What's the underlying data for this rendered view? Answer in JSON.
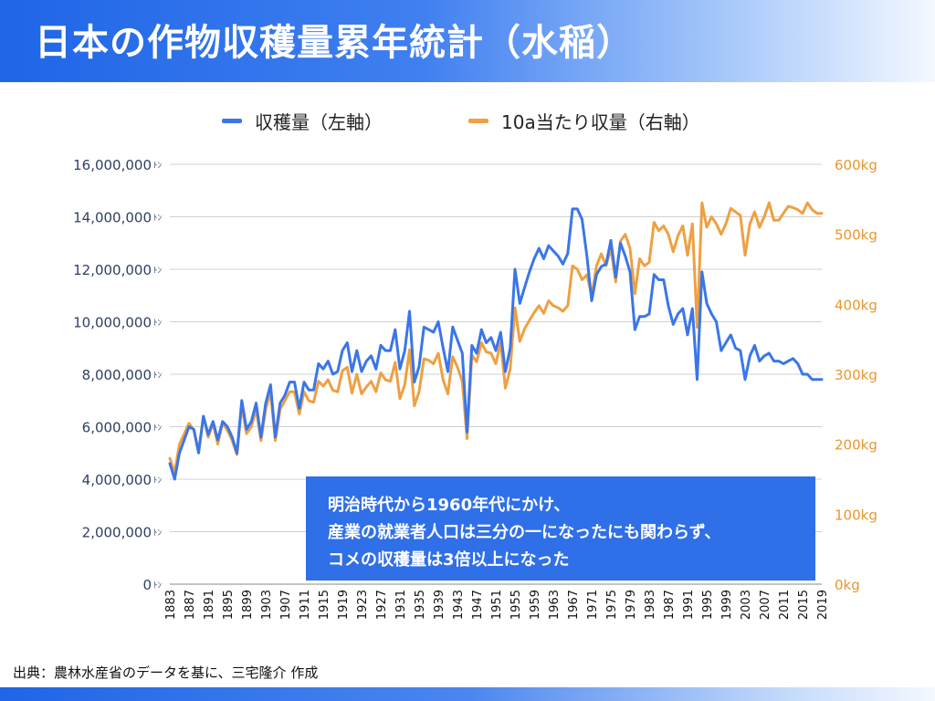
{
  "header": {
    "title": "日本の作物収穫量累年統計（水稲）"
  },
  "callout": {
    "lines": [
      "明治時代から1960年代にかけ、",
      "産業の就業者人口は三分の一になったにも関わらず、",
      "コメの収穫量は3倍以上になった"
    ]
  },
  "source": "出典：農林水産省のデータを基に、三宅隆介 作成",
  "colors": {
    "blue_series": "#3a76e8",
    "orange_series": "#eea042",
    "right_axis_text": "#e8972f",
    "left_axis_text": "#2f3f63",
    "grid": "#d0d0d0"
  },
  "chart_data": {
    "type": "line",
    "grid": true,
    "legend_position": "top-center",
    "x_label_rotation": "vertical",
    "x_range": [
      1883,
      2019
    ],
    "x_tick_labels": [
      "1883",
      "1887",
      "1891",
      "1895",
      "1899",
      "1903",
      "1907",
      "1911",
      "1915",
      "1919",
      "1923",
      "1927",
      "1931",
      "1935",
      "1939",
      "1943",
      "1947",
      "1951",
      "1955",
      "1959",
      "1963",
      "1967",
      "1971",
      "1975",
      "1979",
      "1983",
      "1987",
      "1991",
      "1995",
      "1999",
      "2003",
      "2007",
      "2011",
      "2015",
      "2019"
    ],
    "y_left": {
      "ylim": [
        0,
        16000000
      ],
      "ticks": [
        0,
        2000000,
        4000000,
        6000000,
        8000000,
        10000000,
        12000000,
        14000000,
        16000000
      ],
      "tick_labels": [
        "0",
        "2,000,000",
        "4,000,000",
        "6,000,000",
        "8,000,000",
        "10,000,000",
        "12,000,000",
        "14,000,000",
        "16,000,000"
      ],
      "unit": "ﾄﾝ"
    },
    "y_right": {
      "ylim": [
        0,
        600
      ],
      "ticks": [
        0,
        100,
        200,
        300,
        400,
        500,
        600
      ],
      "tick_labels": [
        "0kg",
        "100kg",
        "200kg",
        "300kg",
        "400kg",
        "500kg",
        "600kg"
      ]
    },
    "series": [
      {
        "name": "収穫量（左軸）",
        "axis": "left",
        "points": [
          [
            1883,
            4600000
          ],
          [
            1884,
            4000000
          ],
          [
            1885,
            5000000
          ],
          [
            1886,
            5500000
          ],
          [
            1887,
            6000000
          ],
          [
            1888,
            5900000
          ],
          [
            1889,
            5000000
          ],
          [
            1890,
            6400000
          ],
          [
            1891,
            5700000
          ],
          [
            1892,
            6200000
          ],
          [
            1893,
            5500000
          ],
          [
            1894,
            6200000
          ],
          [
            1895,
            6000000
          ],
          [
            1896,
            5600000
          ],
          [
            1897,
            5000000
          ],
          [
            1898,
            7000000
          ],
          [
            1899,
            5900000
          ],
          [
            1900,
            6200000
          ],
          [
            1901,
            6900000
          ],
          [
            1902,
            5600000
          ],
          [
            1903,
            6900000
          ],
          [
            1904,
            7600000
          ],
          [
            1905,
            5600000
          ],
          [
            1906,
            6900000
          ],
          [
            1907,
            7200000
          ],
          [
            1908,
            7700000
          ],
          [
            1909,
            7700000
          ],
          [
            1910,
            6700000
          ],
          [
            1911,
            7700000
          ],
          [
            1912,
            7400000
          ],
          [
            1913,
            7400000
          ],
          [
            1914,
            8400000
          ],
          [
            1915,
            8200000
          ],
          [
            1916,
            8500000
          ],
          [
            1917,
            8000000
          ],
          [
            1918,
            8100000
          ],
          [
            1919,
            8900000
          ],
          [
            1920,
            9200000
          ],
          [
            1921,
            8100000
          ],
          [
            1922,
            8900000
          ],
          [
            1923,
            8100000
          ],
          [
            1924,
            8500000
          ],
          [
            1925,
            8700000
          ],
          [
            1926,
            8200000
          ],
          [
            1927,
            9100000
          ],
          [
            1928,
            8900000
          ],
          [
            1929,
            8900000
          ],
          [
            1930,
            9700000
          ],
          [
            1931,
            8200000
          ],
          [
            1932,
            8900000
          ],
          [
            1933,
            10400000
          ],
          [
            1934,
            7700000
          ],
          [
            1935,
            8300000
          ],
          [
            1936,
            9800000
          ],
          [
            1937,
            9700000
          ],
          [
            1938,
            9600000
          ],
          [
            1939,
            10000000
          ],
          [
            1940,
            9000000
          ],
          [
            1941,
            8100000
          ],
          [
            1942,
            9800000
          ],
          [
            1943,
            9300000
          ],
          [
            1944,
            8800000
          ],
          [
            1945,
            5800000
          ],
          [
            1946,
            9100000
          ],
          [
            1947,
            8800000
          ],
          [
            1948,
            9700000
          ],
          [
            1949,
            9200000
          ],
          [
            1950,
            9400000
          ],
          [
            1951,
            8900000
          ],
          [
            1952,
            9600000
          ],
          [
            1953,
            8100000
          ],
          [
            1954,
            9000000
          ],
          [
            1955,
            12000000
          ],
          [
            1956,
            10700000
          ],
          [
            1957,
            11300000
          ],
          [
            1958,
            11900000
          ],
          [
            1959,
            12400000
          ],
          [
            1960,
            12800000
          ],
          [
            1961,
            12400000
          ],
          [
            1962,
            12900000
          ],
          [
            1963,
            12700000
          ],
          [
            1964,
            12500000
          ],
          [
            1965,
            12200000
          ],
          [
            1966,
            12600000
          ],
          [
            1967,
            14300000
          ],
          [
            1968,
            14300000
          ],
          [
            1969,
            13900000
          ],
          [
            1970,
            12500000
          ],
          [
            1971,
            10800000
          ],
          [
            1972,
            11800000
          ],
          [
            1973,
            12100000
          ],
          [
            1974,
            12200000
          ],
          [
            1975,
            13100000
          ],
          [
            1976,
            11700000
          ],
          [
            1977,
            13000000
          ],
          [
            1978,
            12500000
          ],
          [
            1979,
            11900000
          ],
          [
            1980,
            9700000
          ],
          [
            1981,
            10200000
          ],
          [
            1982,
            10200000
          ],
          [
            1983,
            10300000
          ],
          [
            1984,
            11800000
          ],
          [
            1985,
            11600000
          ],
          [
            1986,
            11600000
          ],
          [
            1987,
            10600000
          ],
          [
            1988,
            9900000
          ],
          [
            1989,
            10300000
          ],
          [
            1990,
            10500000
          ],
          [
            1991,
            9500000
          ],
          [
            1992,
            10500000
          ],
          [
            1993,
            7800000
          ],
          [
            1994,
            11900000
          ],
          [
            1995,
            10700000
          ],
          [
            1996,
            10300000
          ],
          [
            1997,
            10000000
          ],
          [
            1998,
            8900000
          ],
          [
            1999,
            9200000
          ],
          [
            2000,
            9500000
          ],
          [
            2001,
            9000000
          ],
          [
            2002,
            8900000
          ],
          [
            2003,
            7800000
          ],
          [
            2004,
            8700000
          ],
          [
            2005,
            9100000
          ],
          [
            2006,
            8500000
          ],
          [
            2007,
            8700000
          ],
          [
            2008,
            8800000
          ],
          [
            2009,
            8500000
          ],
          [
            2010,
            8500000
          ],
          [
            2011,
            8400000
          ],
          [
            2012,
            8500000
          ],
          [
            2013,
            8600000
          ],
          [
            2014,
            8400000
          ],
          [
            2015,
            8000000
          ],
          [
            2016,
            8000000
          ],
          [
            2017,
            7800000
          ],
          [
            2018,
            7800000
          ],
          [
            2019,
            7800000
          ]
        ]
      },
      {
        "name": "10a当たり収量（右軸）",
        "axis": "right",
        "points": [
          [
            1883,
            180
          ],
          [
            1884,
            160
          ],
          [
            1885,
            200
          ],
          [
            1886,
            215
          ],
          [
            1887,
            230
          ],
          [
            1888,
            220
          ],
          [
            1889,
            190
          ],
          [
            1890,
            240
          ],
          [
            1891,
            210
          ],
          [
            1892,
            230
          ],
          [
            1893,
            200
          ],
          [
            1894,
            230
          ],
          [
            1895,
            220
          ],
          [
            1896,
            205
          ],
          [
            1897,
            185
          ],
          [
            1898,
            255
          ],
          [
            1899,
            215
          ],
          [
            1900,
            225
          ],
          [
            1901,
            250
          ],
          [
            1902,
            205
          ],
          [
            1903,
            250
          ],
          [
            1904,
            275
          ],
          [
            1905,
            205
          ],
          [
            1906,
            250
          ],
          [
            1907,
            262
          ],
          [
            1908,
            275
          ],
          [
            1909,
            275
          ],
          [
            1910,
            243
          ],
          [
            1911,
            275
          ],
          [
            1912,
            262
          ],
          [
            1913,
            260
          ],
          [
            1914,
            290
          ],
          [
            1915,
            283
          ],
          [
            1916,
            292
          ],
          [
            1917,
            277
          ],
          [
            1918,
            275
          ],
          [
            1919,
            305
          ],
          [
            1920,
            310
          ],
          [
            1921,
            273
          ],
          [
            1922,
            300
          ],
          [
            1923,
            272
          ],
          [
            1924,
            282
          ],
          [
            1925,
            290
          ],
          [
            1926,
            275
          ],
          [
            1927,
            302
          ],
          [
            1928,
            292
          ],
          [
            1929,
            290
          ],
          [
            1930,
            317
          ],
          [
            1931,
            265
          ],
          [
            1932,
            285
          ],
          [
            1933,
            335
          ],
          [
            1934,
            255
          ],
          [
            1935,
            275
          ],
          [
            1936,
            322
          ],
          [
            1937,
            320
          ],
          [
            1938,
            315
          ],
          [
            1939,
            330
          ],
          [
            1940,
            292
          ],
          [
            1941,
            272
          ],
          [
            1942,
            325
          ],
          [
            1943,
            310
          ],
          [
            1944,
            290
          ],
          [
            1945,
            208
          ],
          [
            1946,
            327
          ],
          [
            1947,
            318
          ],
          [
            1948,
            345
          ],
          [
            1949,
            332
          ],
          [
            1950,
            330
          ],
          [
            1951,
            315
          ],
          [
            1952,
            345
          ],
          [
            1953,
            280
          ],
          [
            1954,
            308
          ],
          [
            1955,
            395
          ],
          [
            1956,
            347
          ],
          [
            1957,
            365
          ],
          [
            1958,
            377
          ],
          [
            1959,
            388
          ],
          [
            1960,
            398
          ],
          [
            1961,
            387
          ],
          [
            1962,
            405
          ],
          [
            1963,
            398
          ],
          [
            1964,
            395
          ],
          [
            1965,
            390
          ],
          [
            1966,
            398
          ],
          [
            1967,
            455
          ],
          [
            1968,
            450
          ],
          [
            1969,
            435
          ],
          [
            1970,
            442
          ],
          [
            1971,
            412
          ],
          [
            1972,
            455
          ],
          [
            1973,
            472
          ],
          [
            1974,
            455
          ],
          [
            1975,
            480
          ],
          [
            1976,
            432
          ],
          [
            1977,
            490
          ],
          [
            1978,
            500
          ],
          [
            1979,
            480
          ],
          [
            1980,
            415
          ],
          [
            1981,
            465
          ],
          [
            1982,
            455
          ],
          [
            1983,
            460
          ],
          [
            1984,
            517
          ],
          [
            1985,
            505
          ],
          [
            1986,
            512
          ],
          [
            1987,
            500
          ],
          [
            1988,
            475
          ],
          [
            1989,
            498
          ],
          [
            1990,
            512
          ],
          [
            1991,
            470
          ],
          [
            1992,
            515
          ],
          [
            1993,
            367
          ],
          [
            1994,
            545
          ],
          [
            1995,
            510
          ],
          [
            1996,
            525
          ],
          [
            1997,
            515
          ],
          [
            1998,
            500
          ],
          [
            1999,
            515
          ],
          [
            2000,
            537
          ],
          [
            2001,
            532
          ],
          [
            2002,
            527
          ],
          [
            2003,
            470
          ],
          [
            2004,
            515
          ],
          [
            2005,
            532
          ],
          [
            2006,
            510
          ],
          [
            2007,
            525
          ],
          [
            2008,
            545
          ],
          [
            2009,
            520
          ],
          [
            2010,
            520
          ],
          [
            2011,
            530
          ],
          [
            2012,
            540
          ],
          [
            2013,
            538
          ],
          [
            2014,
            535
          ],
          [
            2015,
            530
          ],
          [
            2016,
            545
          ],
          [
            2017,
            535
          ],
          [
            2018,
            530
          ],
          [
            2019,
            530
          ]
        ]
      }
    ]
  }
}
